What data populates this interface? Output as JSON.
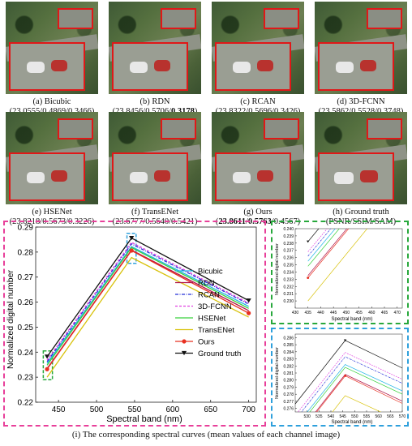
{
  "panels": [
    {
      "label": "(a) Bicubic",
      "psnr": "23.0555",
      "ssim": "0.4869",
      "sam": "0.3466"
    },
    {
      "label": "(b) RDN",
      "psnr": "23.8456",
      "ssim": "0.5706",
      "sam": "0.3178"
    },
    {
      "label": "(c) RCAN",
      "psnr": "23.8322",
      "ssim": "0.5696",
      "sam": "0.3426"
    },
    {
      "label": "(d) 3D-FCNN",
      "psnr": "23.5862",
      "ssim": "0.5528",
      "sam": "0.3748"
    },
    {
      "label": "(e) HSENet",
      "psnr": "23.8218",
      "ssim": "0.5673",
      "sam": "0.3226"
    },
    {
      "label": "(f) TransENet",
      "psnr": "23.6777",
      "ssim": "0.5640",
      "sam": "0.5421"
    },
    {
      "label": "(g) Ours",
      "psnr": "23.8611",
      "ssim": "0.5763",
      "sam": "0.4567"
    },
    {
      "label": "(h) Ground truth",
      "metric_label": "(PSNR/SSIM/SAM)"
    }
  ],
  "chart_data": [
    {
      "type": "line",
      "xlabel": "Spectral band (nm)",
      "ylabel": "Normalized digital number",
      "x": [
        435,
        546,
        700
      ],
      "xlim": [
        420,
        710
      ],
      "ylim": [
        0.22,
        0.29
      ],
      "xticks": [
        450,
        500,
        550,
        600,
        650,
        700
      ],
      "yticks": [
        0.22,
        0.23,
        0.24,
        0.25,
        0.26,
        0.27,
        0.28,
        0.29
      ],
      "legend_position": "right",
      "series": [
        {
          "name": "Bicubic",
          "color": "#1fb4e6",
          "dash": "solid",
          "marker": "none",
          "values": [
            0.2355,
            0.2822,
            0.2583
          ]
        },
        {
          "name": "RDN",
          "color": "#b0154a",
          "dash": "solid",
          "marker": "none",
          "values": [
            0.2335,
            0.2808,
            0.2566
          ]
        },
        {
          "name": "RCAN",
          "color": "#2430d8",
          "dash": "dashdot",
          "marker": "none",
          "values": [
            0.2362,
            0.2833,
            0.2592
          ]
        },
        {
          "name": "3D-FCNN",
          "color": "#e040e0",
          "dash": "dashed",
          "marker": "none",
          "values": [
            0.2368,
            0.2839,
            0.2596
          ]
        },
        {
          "name": "HSENet",
          "color": "#39d13c",
          "dash": "solid",
          "marker": "none",
          "values": [
            0.2348,
            0.2818,
            0.2575
          ]
        },
        {
          "name": "TransENet",
          "color": "#d8c20c",
          "dash": "solid",
          "marker": "none",
          "values": [
            0.23,
            0.2778,
            0.254
          ]
        },
        {
          "name": "Ours",
          "color": "#e83020",
          "dash": "solid",
          "marker": "circle",
          "values": [
            0.2332,
            0.2806,
            0.2556
          ]
        },
        {
          "name": "Ground truth",
          "color": "#111111",
          "dash": "solid",
          "marker": "triangle",
          "values": [
            0.2382,
            0.2856,
            0.2606
          ]
        }
      ]
    },
    {
      "type": "line",
      "xlabel": "Spectral band (nm)",
      "ylabel": "Normalized digital number",
      "xlim": [
        430,
        472
      ],
      "ylim": [
        0.229,
        0.24
      ],
      "xticks": [
        430,
        435,
        440,
        445,
        450,
        455,
        460,
        465,
        470
      ],
      "yticks": [
        0.23,
        0.231,
        0.232,
        0.233,
        0.234,
        0.235,
        0.236,
        0.237,
        0.238,
        0.239,
        0.24
      ]
    },
    {
      "type": "line",
      "xlabel": "Spectral band (nm)",
      "ylabel": "Normalized digital number",
      "xlim": [
        525,
        570
      ],
      "ylim": [
        0.2755,
        0.2865
      ],
      "xticks": [
        530,
        535,
        540,
        545,
        550,
        555,
        560,
        565,
        570
      ],
      "yticks": [
        0.276,
        0.277,
        0.278,
        0.279,
        0.28,
        0.281,
        0.282,
        0.283,
        0.284,
        0.285,
        0.286
      ]
    }
  ],
  "caption": "(i) The corresponding spectral curves (mean values of each channel image)"
}
